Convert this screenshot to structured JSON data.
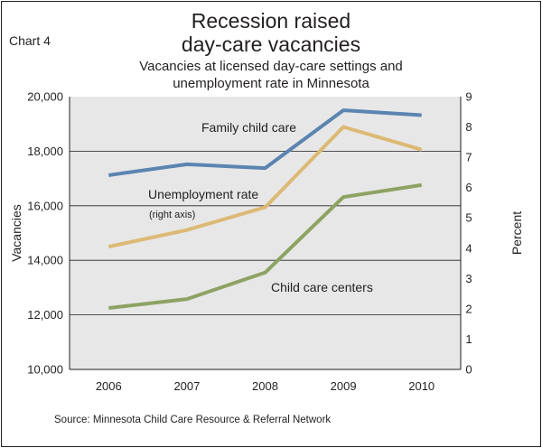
{
  "chart_label": "Chart 4",
  "chart_data": {
    "type": "line",
    "title_lines": [
      "Recession raised",
      "day-care vacancies"
    ],
    "subtitle_lines": [
      "Vacancies at licensed day-care settings and",
      "unemployment rate in Minnesota"
    ],
    "x": [
      "2006",
      "2007",
      "2008",
      "2009",
      "2010"
    ],
    "ylabel": "Vacancies",
    "ylabel_right": "Percent",
    "ylim": [
      10000,
      20000
    ],
    "ylim_right": [
      0,
      9
    ],
    "y_ticks": [
      "10,000",
      "12,000",
      "14,000",
      "16,000",
      "18,000",
      "20,000"
    ],
    "y_ticks_right": [
      "0",
      "1",
      "2",
      "3",
      "4",
      "5",
      "6",
      "7",
      "8",
      "9"
    ],
    "grid": "horizontal",
    "series": [
      {
        "name": "Family child care",
        "axis": "left",
        "color": "#5b84b1",
        "values": [
          17120,
          17520,
          17380,
          19500,
          19320
        ]
      },
      {
        "name": "Child care centers",
        "axis": "left",
        "color": "#8ea263",
        "values": [
          12250,
          12580,
          13550,
          16320,
          16760
        ]
      },
      {
        "name": "Unemployment rate",
        "axis": "right",
        "color": "#dcb974",
        "values": [
          4.05,
          4.6,
          5.35,
          8.0,
          7.25
        ]
      }
    ],
    "annotations": {
      "family": "Family child care",
      "unemployment": "Unemployment rate",
      "unemployment_note": "(right axis)",
      "centers": "Child care centers"
    },
    "plot_background": "#e7e7e7"
  },
  "source": "Source: Minnesota Child Care Resource & Referral Network"
}
